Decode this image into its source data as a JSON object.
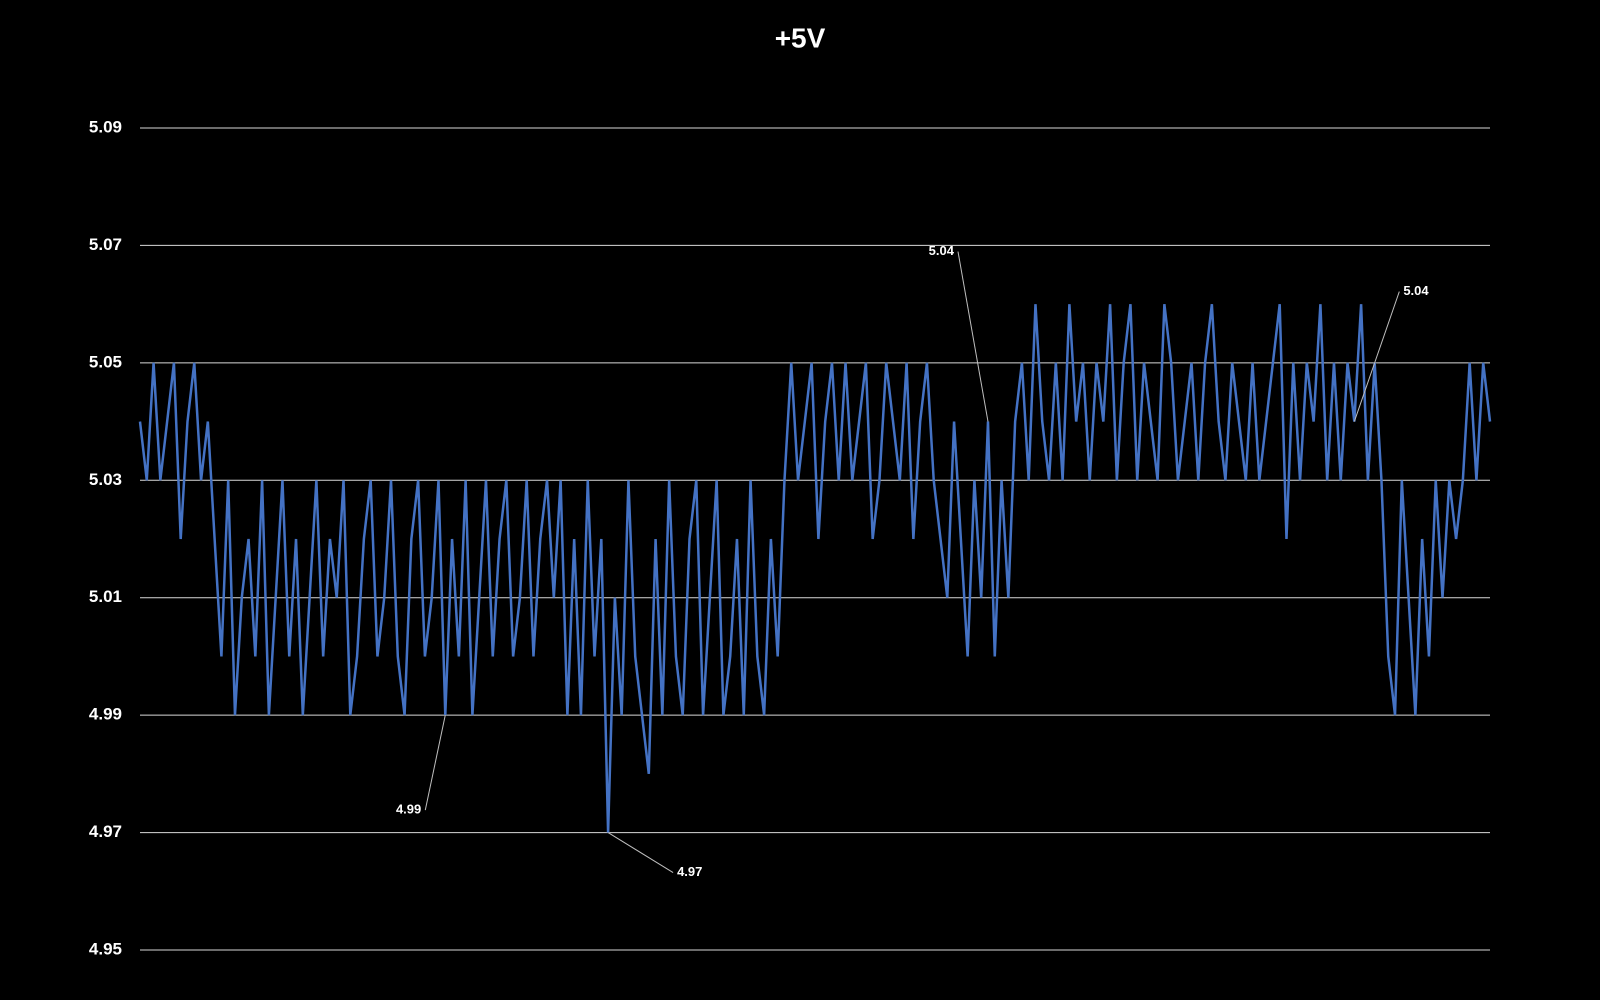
{
  "chart_data": {
    "type": "line",
    "title": "+5V",
    "ylim": [
      4.95,
      5.09
    ],
    "yticks": [
      4.95,
      4.97,
      4.99,
      5.01,
      5.03,
      5.05,
      5.07,
      5.09
    ],
    "grid": true,
    "series": [
      {
        "color": "#4472c4",
        "values": [
          5.04,
          5.03,
          5.05,
          5.03,
          5.04,
          5.05,
          5.02,
          5.04,
          5.05,
          5.03,
          5.04,
          5.02,
          5.0,
          5.03,
          4.99,
          5.01,
          5.02,
          5.0,
          5.03,
          4.99,
          5.01,
          5.03,
          5.0,
          5.02,
          4.99,
          5.01,
          5.03,
          5.0,
          5.02,
          5.01,
          5.03,
          4.99,
          5.0,
          5.02,
          5.03,
          5.0,
          5.01,
          5.03,
          5.0,
          4.99,
          5.02,
          5.03,
          5.0,
          5.01,
          5.03,
          4.99,
          5.02,
          5.0,
          5.03,
          4.99,
          5.01,
          5.03,
          5.0,
          5.02,
          5.03,
          5.0,
          5.01,
          5.03,
          5.0,
          5.02,
          5.03,
          5.01,
          5.03,
          4.99,
          5.02,
          4.99,
          5.03,
          5.0,
          5.02,
          4.97,
          5.01,
          4.99,
          5.03,
          5.0,
          4.99,
          4.98,
          5.02,
          4.99,
          5.03,
          5.0,
          4.99,
          5.02,
          5.03,
          4.99,
          5.01,
          5.03,
          4.99,
          5.0,
          5.02,
          4.99,
          5.03,
          5.0,
          4.99,
          5.02,
          5.0,
          5.03,
          5.05,
          5.03,
          5.04,
          5.05,
          5.02,
          5.04,
          5.05,
          5.03,
          5.05,
          5.03,
          5.04,
          5.05,
          5.02,
          5.03,
          5.05,
          5.04,
          5.03,
          5.05,
          5.02,
          5.04,
          5.05,
          5.03,
          5.02,
          5.01,
          5.04,
          5.02,
          5.0,
          5.03,
          5.01,
          5.04,
          5.0,
          5.03,
          5.01,
          5.04,
          5.05,
          5.03,
          5.06,
          5.04,
          5.03,
          5.05,
          5.03,
          5.06,
          5.04,
          5.05,
          5.03,
          5.05,
          5.04,
          5.06,
          5.03,
          5.05,
          5.06,
          5.03,
          5.05,
          5.04,
          5.03,
          5.06,
          5.05,
          5.03,
          5.04,
          5.05,
          5.03,
          5.05,
          5.06,
          5.04,
          5.03,
          5.05,
          5.04,
          5.03,
          5.05,
          5.03,
          5.04,
          5.05,
          5.06,
          5.02,
          5.05,
          5.03,
          5.05,
          5.04,
          5.06,
          5.03,
          5.05,
          5.03,
          5.05,
          5.04,
          5.06,
          5.03,
          5.05,
          5.03,
          5.0,
          4.99,
          5.03,
          5.01,
          4.99,
          5.02,
          5.0,
          5.03,
          5.01,
          5.03,
          5.02,
          5.03,
          5.05,
          5.03,
          5.05,
          5.04
        ],
        "value_labels": [
          null,
          null,
          null,
          null,
          null,
          null,
          null,
          null,
          null,
          null,
          null,
          null,
          null,
          null,
          null,
          null,
          null,
          null,
          null,
          null,
          null,
          null,
          null,
          null,
          null,
          null,
          null,
          null,
          null,
          null,
          null,
          null,
          null,
          null,
          null,
          null,
          null,
          null,
          null,
          null,
          null,
          null,
          null,
          null,
          null,
          "4.99",
          null,
          null,
          null,
          null,
          null,
          null,
          null,
          null,
          null,
          null,
          null,
          null,
          null,
          null,
          null,
          null,
          null,
          null,
          null,
          null,
          null,
          null,
          null,
          "4.97",
          null,
          null,
          null,
          null,
          null,
          null,
          null,
          null,
          null,
          null,
          null,
          null,
          null,
          null,
          null,
          null,
          null,
          null,
          null,
          null,
          null,
          null,
          null,
          null,
          null,
          null,
          null,
          null,
          null,
          null,
          null,
          null,
          null,
          null,
          null,
          null,
          null,
          null,
          null,
          null,
          null,
          null,
          null,
          null,
          null,
          null,
          null,
          null,
          null,
          null,
          null,
          null,
          null,
          null,
          null,
          "5.04",
          null,
          null,
          null,
          null,
          null,
          null,
          null,
          null,
          null,
          null,
          null,
          null,
          null,
          null,
          null,
          null,
          null,
          null,
          null,
          null,
          null,
          null,
          null,
          null,
          null,
          null,
          null,
          null,
          null,
          null,
          null,
          null,
          null,
          null,
          null,
          null,
          null,
          null,
          null,
          null,
          null,
          null,
          null,
          null,
          null,
          null,
          null,
          null,
          null,
          null,
          null,
          null,
          null,
          "5.04",
          null,
          null,
          null,
          null,
          null,
          null,
          null,
          null,
          null,
          null,
          null,
          null,
          null,
          null,
          null,
          null,
          null,
          null,
          null,
          null
        ]
      }
    ]
  }
}
